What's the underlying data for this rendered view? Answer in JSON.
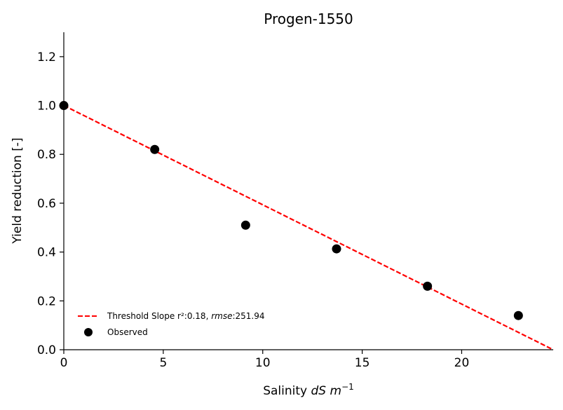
{
  "chart_data": {
    "type": "scatter",
    "title": "Progen-1550",
    "xlabel_prefix": "Salinity ",
    "xlabel_math": "dS m",
    "xlabel_sup": "−1",
    "ylabel": "Yield reduction [-]",
    "xlim": [
      0,
      24.6
    ],
    "ylim": [
      0,
      1.3
    ],
    "xticks": [
      0,
      5,
      10,
      15,
      20
    ],
    "yticks": [
      0.0,
      0.2,
      0.4,
      0.6,
      0.8,
      1.0,
      1.2
    ],
    "ytick_labels": [
      "0.0",
      "0.2",
      "0.4",
      "0.6",
      "0.8",
      "1.0",
      "1.2"
    ],
    "grid": false,
    "legend_position": "lower-left",
    "series": [
      {
        "name": "Observed",
        "kind": "scatter",
        "color": "#000000",
        "x": [
          0.0,
          4.57,
          9.14,
          13.71,
          18.28,
          22.85
        ],
        "y": [
          1.0,
          0.82,
          0.51,
          0.413,
          0.26,
          0.14
        ]
      },
      {
        "name_prefix": "Threshold Slope r²:0.18, ",
        "name_math": "rmse",
        "name_suffix": ":251.94",
        "kind": "line",
        "style": "dashed",
        "color": "#ff0000",
        "x": [
          0.0,
          24.6
        ],
        "y": [
          1.0,
          0.0
        ]
      }
    ]
  }
}
